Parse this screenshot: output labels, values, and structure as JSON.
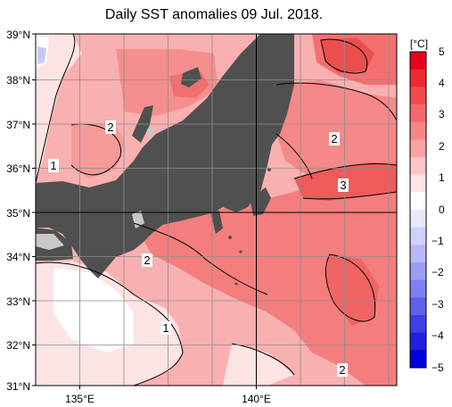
{
  "title": "Daily SST anomalies 09 Jul. 2018.",
  "map": {
    "lat_labels": [
      "39°N",
      "38°N",
      "37°N",
      "36°N",
      "35°N",
      "34°N",
      "33°N",
      "32°N",
      "31°N"
    ],
    "lon_labels": [
      "135°E",
      "140°E"
    ],
    "contour_labels": [
      "2",
      "1",
      "2",
      "3",
      "2",
      "1",
      "2"
    ]
  },
  "colorbar": {
    "unit": "[°C]",
    "ticks": [
      "5",
      "4",
      "3",
      "2",
      "1",
      "0",
      "−1",
      "−2",
      "−3",
      "−4",
      "−5"
    ],
    "colors_top_to_bottom": [
      "#e8001a",
      "#ee2a2e",
      "#f24b4c",
      "#f56868",
      "#f88585",
      "#fba3a3",
      "#fdc6c6",
      "#ffe4e4",
      "#ffffff",
      "#e8e8ff",
      "#d0d0fb",
      "#b8b8f8",
      "#9c9cf2",
      "#7f7fee",
      "#6060ea",
      "#3f3fe6",
      "#2020e0",
      "#0000dc"
    ]
  },
  "colors": {
    "land": "#505050",
    "lake": "#c8c8c8",
    "grid": "#8c8c8c",
    "frame": "#000000"
  }
}
